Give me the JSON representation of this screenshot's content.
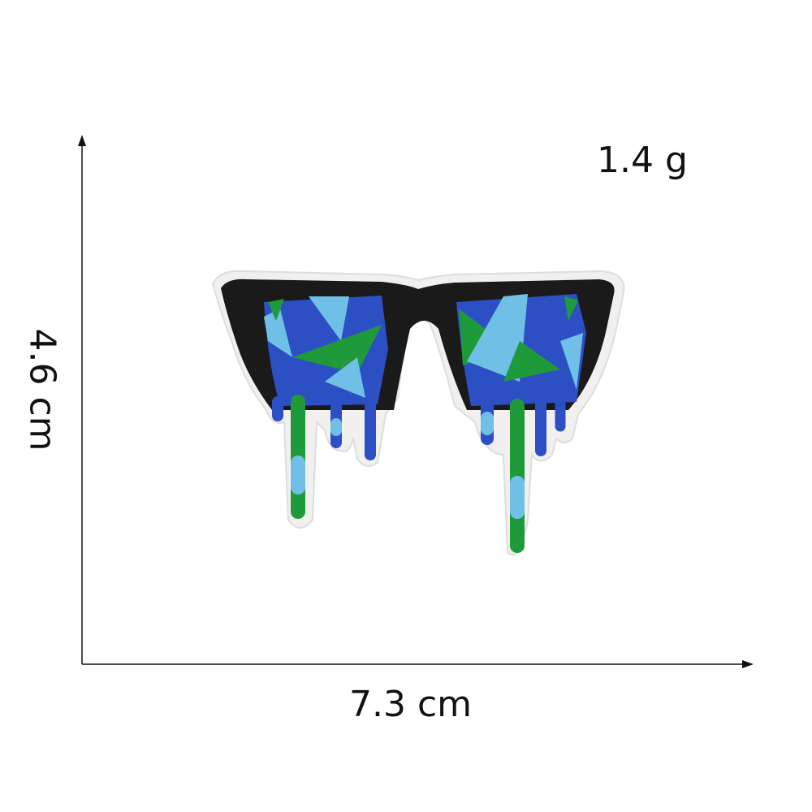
{
  "labels": {
    "weight": "1.4 g",
    "width": "7.3 cm",
    "height": "4.6 cm"
  },
  "product": {
    "icon": "dripping-sunglasses-patch",
    "colors": {
      "frame": "#1a1a1a",
      "border": "#f2f0ee",
      "dark_blue": "#2d4fc4",
      "light_blue": "#6fbfe6",
      "green": "#1f9a3a"
    }
  }
}
